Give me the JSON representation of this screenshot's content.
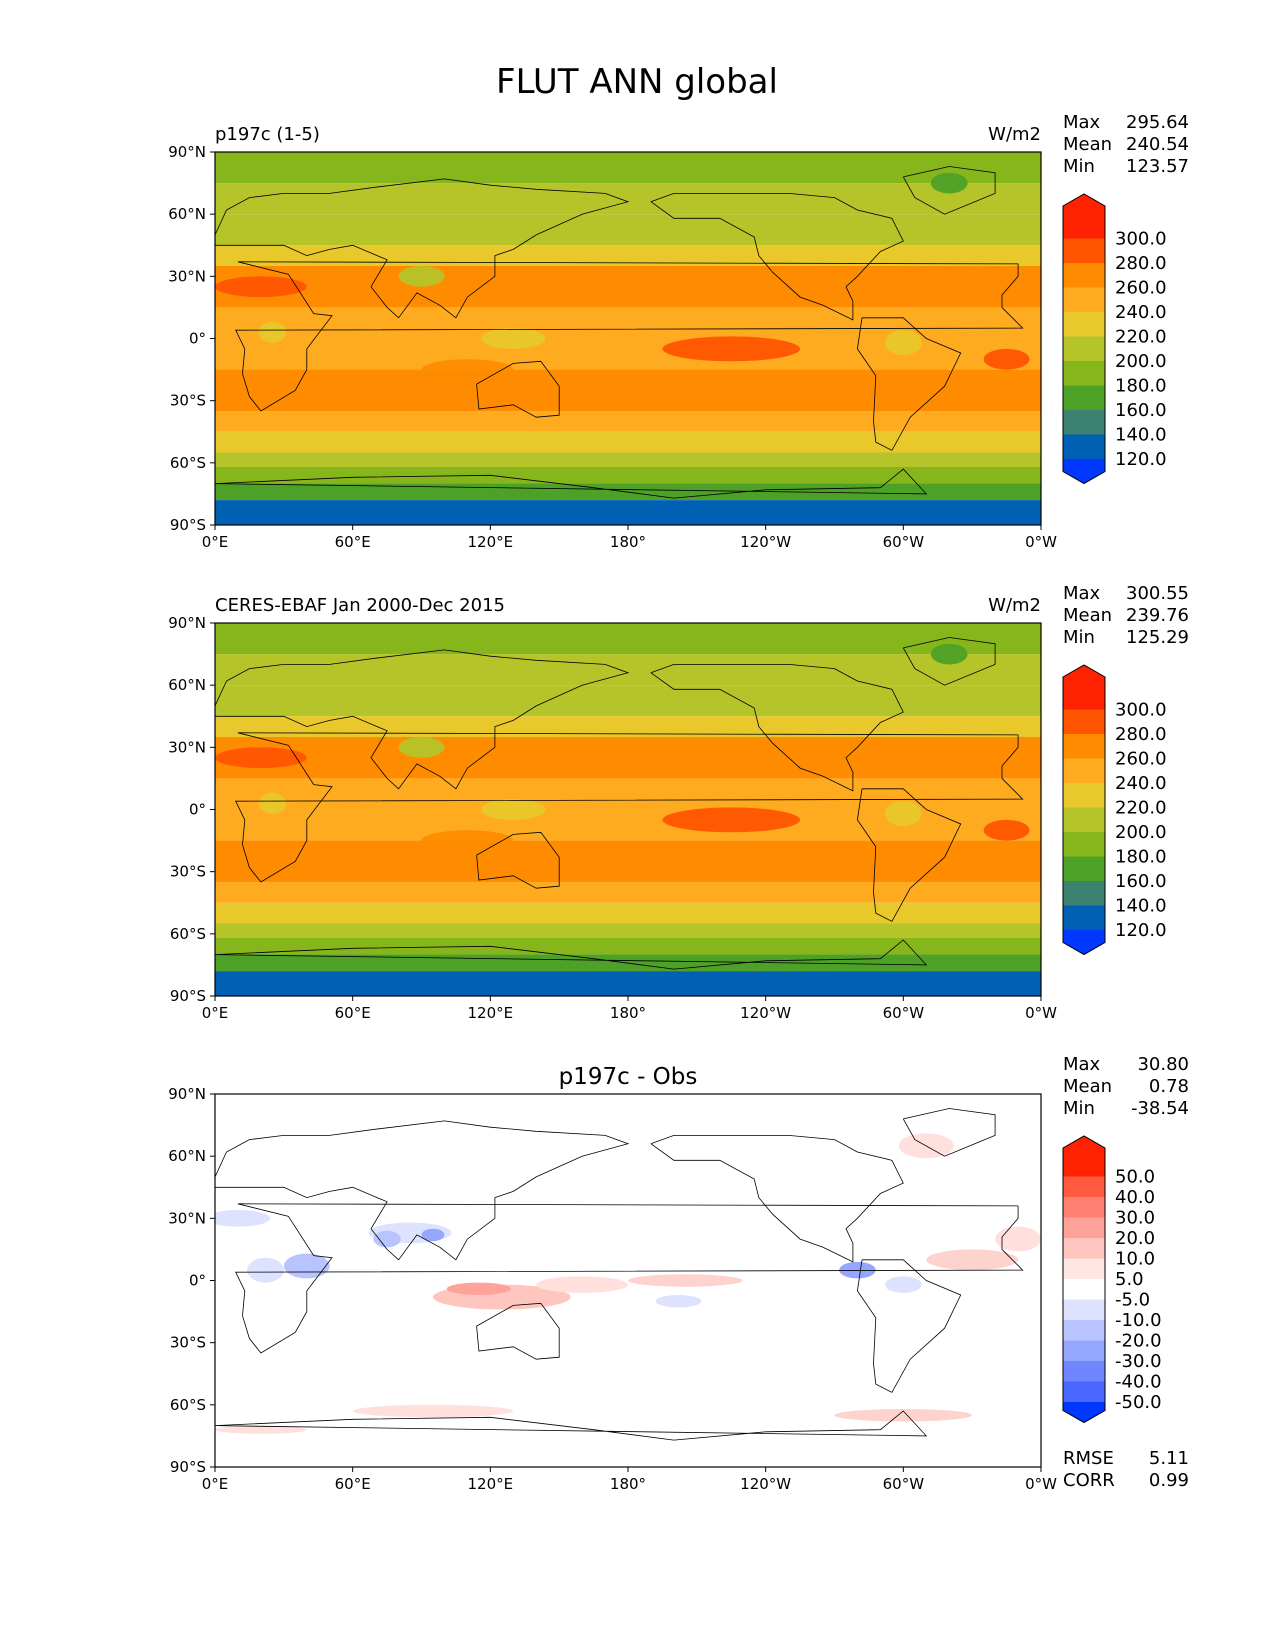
{
  "figure": {
    "title": "FLUT ANN global"
  },
  "panels": [
    {
      "left_title": "p197c (1-5)",
      "center_title": "",
      "units": "W/m2",
      "stats": [
        {
          "label": "Max",
          "value": "295.64"
        },
        {
          "label": "Mean",
          "value": "240.54"
        },
        {
          "label": "Min",
          "value": "123.57"
        }
      ],
      "colorbar_labels": [
        "300.0",
        "280.0",
        "260.0",
        "240.0",
        "220.0",
        "200.0",
        "180.0",
        "160.0",
        "140.0",
        "120.0"
      ],
      "colorbar_colors": [
        "#ff2200",
        "#ff5500",
        "#ff8c00",
        "#ffab20",
        "#e8c82a",
        "#b5c428",
        "#86b51c",
        "#4ea127",
        "#3b8270",
        "#0060b4",
        "#0038ff"
      ]
    },
    {
      "left_title": "CERES-EBAF Jan 2000-Dec 2015",
      "center_title": "",
      "units": "W/m2",
      "stats": [
        {
          "label": "Max",
          "value": "300.55"
        },
        {
          "label": "Mean",
          "value": "239.76"
        },
        {
          "label": "Min",
          "value": "125.29"
        }
      ],
      "colorbar_labels": [
        "300.0",
        "280.0",
        "260.0",
        "240.0",
        "220.0",
        "200.0",
        "180.0",
        "160.0",
        "140.0",
        "120.0"
      ],
      "colorbar_colors": [
        "#ff2200",
        "#ff5500",
        "#ff8c00",
        "#ffab20",
        "#e8c82a",
        "#b5c428",
        "#86b51c",
        "#4ea127",
        "#3b8270",
        "#0060b4",
        "#0038ff"
      ]
    },
    {
      "left_title": "",
      "center_title": "p197c - Obs",
      "units": "",
      "stats": [
        {
          "label": "Max",
          "value": "30.80"
        },
        {
          "label": "Mean",
          "value": "0.78"
        },
        {
          "label": "Min",
          "value": "-38.54"
        }
      ],
      "colorbar_labels": [
        "50.0",
        "40.0",
        "30.0",
        "20.0",
        "10.0",
        "5.0",
        "-5.0",
        "-10.0",
        "-20.0",
        "-30.0",
        "-40.0",
        "-50.0"
      ],
      "colorbar_colors": [
        "#ff2200",
        "#ff5a40",
        "#ff8070",
        "#ffa39a",
        "#ffc6c0",
        "#ffe6e3",
        "#ffffff",
        "#dde3ff",
        "#b8c4ff",
        "#95a6ff",
        "#6f86ff",
        "#4a68ff",
        "#0038ff"
      ],
      "metrics": [
        {
          "label": "RMSE",
          "value": "5.11"
        },
        {
          "label": "CORR",
          "value": "0.99"
        }
      ]
    }
  ],
  "chart_data": [
    {
      "type": "heatmap",
      "title": "p197c (1-5)",
      "units": "W/m2",
      "x_ticks": [
        "0°E",
        "60°E",
        "120°E",
        "180°",
        "120°W",
        "60°W",
        "0°W"
      ],
      "y_ticks": [
        "90°N",
        "60°N",
        "30°N",
        "0°",
        "30°S",
        "60°S",
        "90°S"
      ],
      "xlim": [
        0,
        360
      ],
      "ylim": [
        -90,
        90
      ],
      "zonal_mean_bands": [
        {
          "lat_from": 90,
          "lat_to": 75,
          "value": 185
        },
        {
          "lat_from": 75,
          "lat_to": 60,
          "value": 200
        },
        {
          "lat_from": 60,
          "lat_to": 45,
          "value": 215
        },
        {
          "lat_from": 45,
          "lat_to": 35,
          "value": 232
        },
        {
          "lat_from": 35,
          "lat_to": 15,
          "value": 262
        },
        {
          "lat_from": 15,
          "lat_to": 0,
          "value": 245
        },
        {
          "lat_from": 0,
          "lat_to": -15,
          "value": 255
        },
        {
          "lat_from": -15,
          "lat_to": -35,
          "value": 262
        },
        {
          "lat_from": -35,
          "lat_to": -45,
          "value": 242
        },
        {
          "lat_from": -45,
          "lat_to": -55,
          "value": 222
        },
        {
          "lat_from": -55,
          "lat_to": -62,
          "value": 205
        },
        {
          "lat_from": -62,
          "lat_to": -70,
          "value": 185
        },
        {
          "lat_from": -70,
          "lat_to": -78,
          "value": 165
        },
        {
          "lat_from": -78,
          "lat_to": -90,
          "value": 135
        }
      ],
      "colorbar_levels": [
        120,
        140,
        160,
        180,
        200,
        220,
        240,
        260,
        280,
        300
      ]
    },
    {
      "type": "heatmap",
      "title": "CERES-EBAF Jan 2000-Dec 2015",
      "units": "W/m2",
      "x_ticks": [
        "0°E",
        "60°E",
        "120°E",
        "180°",
        "120°W",
        "60°W",
        "0°W"
      ],
      "y_ticks": [
        "90°N",
        "60°N",
        "30°N",
        "0°",
        "30°S",
        "60°S",
        "90°S"
      ],
      "xlim": [
        0,
        360
      ],
      "ylim": [
        -90,
        90
      ],
      "zonal_mean_bands": [
        {
          "lat_from": 90,
          "lat_to": 75,
          "value": 185
        },
        {
          "lat_from": 75,
          "lat_to": 60,
          "value": 205
        },
        {
          "lat_from": 60,
          "lat_to": 45,
          "value": 215
        },
        {
          "lat_from": 45,
          "lat_to": 35,
          "value": 235
        },
        {
          "lat_from": 35,
          "lat_to": 15,
          "value": 262
        },
        {
          "lat_from": 15,
          "lat_to": 0,
          "value": 242
        },
        {
          "lat_from": 0,
          "lat_to": -15,
          "value": 255
        },
        {
          "lat_from": -15,
          "lat_to": -35,
          "value": 262
        },
        {
          "lat_from": -35,
          "lat_to": -45,
          "value": 242
        },
        {
          "lat_from": -45,
          "lat_to": -55,
          "value": 222
        },
        {
          "lat_from": -55,
          "lat_to": -62,
          "value": 205
        },
        {
          "lat_from": -62,
          "lat_to": -70,
          "value": 185
        },
        {
          "lat_from": -70,
          "lat_to": -78,
          "value": 165
        },
        {
          "lat_from": -78,
          "lat_to": -90,
          "value": 135
        }
      ],
      "colorbar_levels": [
        120,
        140,
        160,
        180,
        200,
        220,
        240,
        260,
        280,
        300
      ]
    },
    {
      "type": "heatmap",
      "title": "p197c - Obs",
      "x_ticks": [
        "0°E",
        "60°E",
        "120°E",
        "180°",
        "120°W",
        "60°W",
        "0°W"
      ],
      "y_ticks": [
        "90°N",
        "60°N",
        "30°N",
        "0°",
        "30°S",
        "60°S",
        "90°S"
      ],
      "xlim": [
        0,
        360
      ],
      "ylim": [
        -90,
        90
      ],
      "colorbar_levels": [
        -50,
        -40,
        -30,
        -20,
        -10,
        -5,
        5,
        10,
        20,
        30,
        40,
        50
      ]
    }
  ]
}
